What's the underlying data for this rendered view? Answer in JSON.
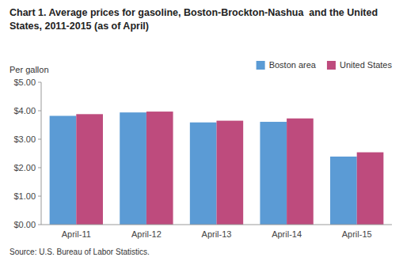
{
  "chart_data": {
    "type": "bar",
    "title": "Chart 1. Average prices for gasoline, Boston-Brockton-Nashua  and the United  States, 2011-2015 (as of April)",
    "ylabel": "Per gallon",
    "source": "Source: U.S. Bureau of Labor Statistics.",
    "categories": [
      "April-11",
      "April-12",
      "April-13",
      "April-14",
      "April-15"
    ],
    "series": [
      {
        "name": "Boston area",
        "color": "#5B9BD5",
        "values": [
          3.82,
          3.94,
          3.59,
          3.61,
          2.39
        ]
      },
      {
        "name": "United States",
        "color": "#BE4B7D",
        "values": [
          3.88,
          3.97,
          3.65,
          3.73,
          2.54
        ]
      }
    ],
    "ylim": [
      0,
      5.0
    ],
    "yticks": [
      {
        "value": 0.0,
        "label": "$0.00"
      },
      {
        "value": 1.0,
        "label": "$1.00"
      },
      {
        "value": 2.0,
        "label": "$2.00"
      },
      {
        "value": 3.0,
        "label": "$3.00"
      },
      {
        "value": 4.0,
        "label": "$4.00"
      },
      {
        "value": 5.0,
        "label": "$5.00"
      }
    ],
    "legend": "top-right",
    "grid": false
  }
}
